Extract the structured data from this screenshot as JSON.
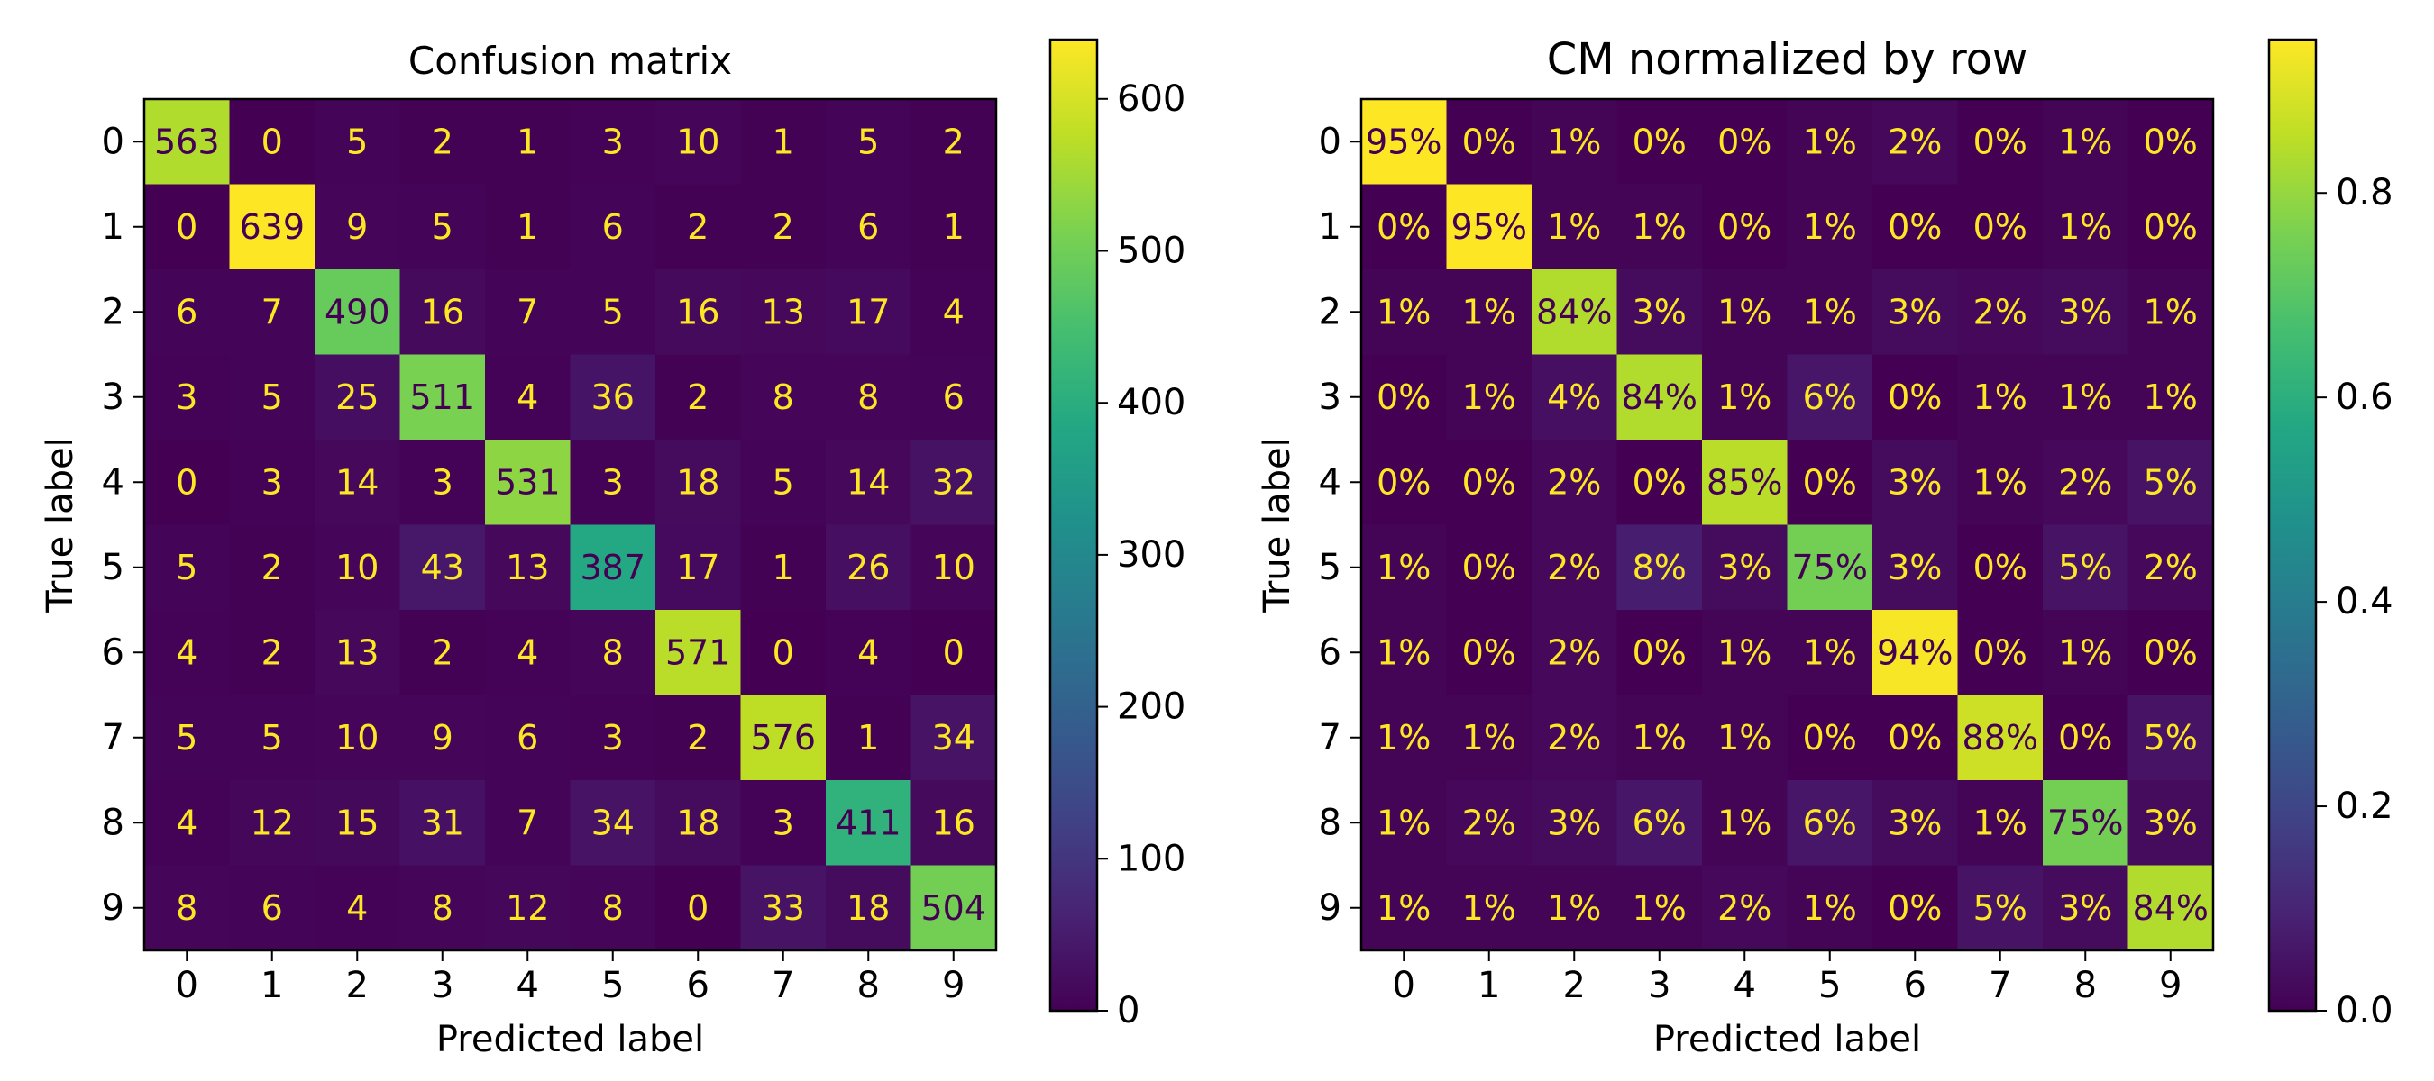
{
  "chart_data": [
    {
      "type": "heatmap",
      "title": "Confusion matrix",
      "xlabel": "Predicted label",
      "ylabel": "True label",
      "x_categories": [
        "0",
        "1",
        "2",
        "3",
        "4",
        "5",
        "6",
        "7",
        "8",
        "9"
      ],
      "y_categories": [
        "0",
        "1",
        "2",
        "3",
        "4",
        "5",
        "6",
        "7",
        "8",
        "9"
      ],
      "values": [
        [
          563,
          0,
          5,
          2,
          1,
          3,
          10,
          1,
          5,
          2
        ],
        [
          0,
          639,
          9,
          5,
          1,
          6,
          2,
          2,
          6,
          1
        ],
        [
          6,
          7,
          490,
          16,
          7,
          5,
          16,
          13,
          17,
          4
        ],
        [
          3,
          5,
          25,
          511,
          4,
          36,
          2,
          8,
          8,
          6
        ],
        [
          0,
          3,
          14,
          3,
          531,
          3,
          18,
          5,
          14,
          32
        ],
        [
          5,
          2,
          10,
          43,
          13,
          387,
          17,
          1,
          26,
          10
        ],
        [
          4,
          2,
          13,
          2,
          4,
          8,
          571,
          0,
          4,
          0
        ],
        [
          5,
          5,
          10,
          9,
          6,
          3,
          2,
          576,
          1,
          34
        ],
        [
          4,
          12,
          15,
          31,
          7,
          34,
          18,
          3,
          411,
          16
        ],
        [
          8,
          6,
          4,
          8,
          12,
          8,
          0,
          33,
          18,
          504
        ]
      ],
      "cell_labels": [
        [
          "563",
          "0",
          "5",
          "2",
          "1",
          "3",
          "10",
          "1",
          "5",
          "2"
        ],
        [
          "0",
          "639",
          "9",
          "5",
          "1",
          "6",
          "2",
          "2",
          "6",
          "1"
        ],
        [
          "6",
          "7",
          "490",
          "16",
          "7",
          "5",
          "16",
          "13",
          "17",
          "4"
        ],
        [
          "3",
          "5",
          "25",
          "511",
          "4",
          "36",
          "2",
          "8",
          "8",
          "6"
        ],
        [
          "0",
          "3",
          "14",
          "3",
          "531",
          "3",
          "18",
          "5",
          "14",
          "32"
        ],
        [
          "5",
          "2",
          "10",
          "43",
          "13",
          "387",
          "17",
          "1",
          "26",
          "10"
        ],
        [
          "4",
          "2",
          "13",
          "2",
          "4",
          "8",
          "571",
          "0",
          "4",
          "0"
        ],
        [
          "5",
          "5",
          "10",
          "9",
          "6",
          "3",
          "2",
          "576",
          "1",
          "34"
        ],
        [
          "4",
          "12",
          "15",
          "31",
          "7",
          "34",
          "18",
          "3",
          "411",
          "16"
        ],
        [
          "8",
          "6",
          "4",
          "8",
          "12",
          "8",
          "0",
          "33",
          "18",
          "504"
        ]
      ],
      "colorbar": {
        "vmin": 0,
        "vmax": 639,
        "ticks": [
          0,
          100,
          200,
          300,
          400,
          500,
          600
        ],
        "tick_labels": [
          "0",
          "100",
          "200",
          "300",
          "400",
          "500",
          "600"
        ]
      },
      "colormap": "viridis"
    },
    {
      "type": "heatmap",
      "title": "CM normalized by row",
      "xlabel": "Predicted label",
      "ylabel": "True label",
      "x_categories": [
        "0",
        "1",
        "2",
        "3",
        "4",
        "5",
        "6",
        "7",
        "8",
        "9"
      ],
      "y_categories": [
        "0",
        "1",
        "2",
        "3",
        "4",
        "5",
        "6",
        "7",
        "8",
        "9"
      ],
      "values": [
        [
          0.95,
          0.0,
          0.01,
          0.0,
          0.0,
          0.01,
          0.02,
          0.0,
          0.01,
          0.0
        ],
        [
          0.0,
          0.95,
          0.01,
          0.01,
          0.0,
          0.01,
          0.0,
          0.0,
          0.01,
          0.0
        ],
        [
          0.01,
          0.01,
          0.84,
          0.03,
          0.01,
          0.01,
          0.03,
          0.02,
          0.03,
          0.01
        ],
        [
          0.0,
          0.01,
          0.04,
          0.84,
          0.01,
          0.06,
          0.0,
          0.01,
          0.01,
          0.01
        ],
        [
          0.0,
          0.0,
          0.02,
          0.0,
          0.85,
          0.0,
          0.03,
          0.01,
          0.02,
          0.05
        ],
        [
          0.01,
          0.0,
          0.02,
          0.08,
          0.03,
          0.75,
          0.03,
          0.0,
          0.05,
          0.02
        ],
        [
          0.01,
          0.0,
          0.02,
          0.0,
          0.01,
          0.01,
          0.94,
          0.0,
          0.01,
          0.0
        ],
        [
          0.01,
          0.01,
          0.02,
          0.01,
          0.01,
          0.0,
          0.0,
          0.88,
          0.0,
          0.05
        ],
        [
          0.01,
          0.02,
          0.03,
          0.06,
          0.01,
          0.06,
          0.03,
          0.01,
          0.75,
          0.03
        ],
        [
          0.01,
          0.01,
          0.01,
          0.01,
          0.02,
          0.01,
          0.0,
          0.05,
          0.03,
          0.84
        ]
      ],
      "cell_labels": [
        [
          "95%",
          "0%",
          "1%",
          "0%",
          "0%",
          "1%",
          "2%",
          "0%",
          "1%",
          "0%"
        ],
        [
          "0%",
          "95%",
          "1%",
          "1%",
          "0%",
          "1%",
          "0%",
          "0%",
          "1%",
          "0%"
        ],
        [
          "1%",
          "1%",
          "84%",
          "3%",
          "1%",
          "1%",
          "3%",
          "2%",
          "3%",
          "1%"
        ],
        [
          "0%",
          "1%",
          "4%",
          "84%",
          "1%",
          "6%",
          "0%",
          "1%",
          "1%",
          "1%"
        ],
        [
          "0%",
          "0%",
          "2%",
          "0%",
          "85%",
          "0%",
          "3%",
          "1%",
          "2%",
          "5%"
        ],
        [
          "1%",
          "0%",
          "2%",
          "8%",
          "3%",
          "75%",
          "3%",
          "0%",
          "5%",
          "2%"
        ],
        [
          "1%",
          "0%",
          "2%",
          "0%",
          "1%",
          "1%",
          "94%",
          "0%",
          "1%",
          "0%"
        ],
        [
          "1%",
          "1%",
          "2%",
          "1%",
          "1%",
          "0%",
          "0%",
          "88%",
          "0%",
          "5%"
        ],
        [
          "1%",
          "2%",
          "3%",
          "6%",
          "1%",
          "6%",
          "3%",
          "1%",
          "75%",
          "3%"
        ],
        [
          "1%",
          "1%",
          "1%",
          "1%",
          "2%",
          "1%",
          "0%",
          "5%",
          "3%",
          "84%"
        ]
      ],
      "colorbar": {
        "vmin": 0.0,
        "vmax": 0.95,
        "ticks": [
          0.0,
          0.2,
          0.4,
          0.6,
          0.8
        ],
        "tick_labels": [
          "0.0",
          "0.2",
          "0.4",
          "0.6",
          "0.8"
        ]
      },
      "colormap": "viridis"
    }
  ],
  "colors": {
    "text_on_dark": "#FDE725",
    "text_on_light": "#440154",
    "axis": "#000000"
  }
}
